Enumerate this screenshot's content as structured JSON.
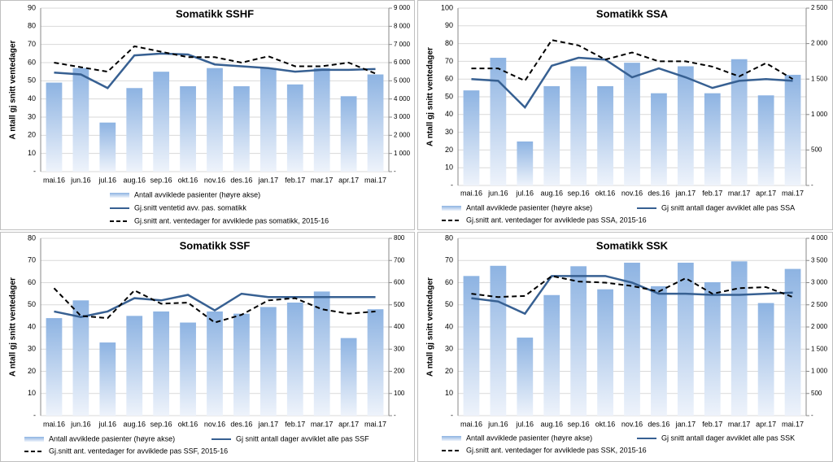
{
  "chart_data": [
    {
      "type": "combo",
      "title": "Somatikk SSHF",
      "ylabel": "A ntall gj snitt ventedager",
      "categories": [
        "mai.16",
        "jun.16",
        "jul.16",
        "aug.16",
        "sep.16",
        "okt.16",
        "nov.16",
        "des.16",
        "jan.17",
        "feb.17",
        "mar.17",
        "apr.17",
        "mai.17"
      ],
      "ylim": [
        0,
        90
      ],
      "yticks": [
        {
          "value": 0,
          "label": "-"
        },
        10,
        20,
        30,
        40,
        50,
        60,
        70,
        80,
        90
      ],
      "y2lim": [
        0,
        9000
      ],
      "y2ticks": [
        {
          "value": 0,
          "label": "-"
        },
        {
          "value": 1000,
          "label": "1 000"
        },
        {
          "value": 2000,
          "label": "2 000"
        },
        {
          "value": 3000,
          "label": "3 000"
        },
        {
          "value": 4000,
          "label": "4 000"
        },
        {
          "value": 5000,
          "label": "5 000"
        },
        {
          "value": 6000,
          "label": "6 000"
        },
        {
          "value": 7000,
          "label": "7 000"
        },
        {
          "value": 8000,
          "label": "8 000"
        },
        {
          "value": 9000,
          "label": "9 000"
        }
      ],
      "grid": true,
      "series": [
        {
          "name": "Antall avviklede pasienter (høyre akse)",
          "type": "bar",
          "axis": "y2",
          "color": "#95b3d7",
          "values": [
            4900,
            5700,
            2700,
            4600,
            5500,
            4700,
            5700,
            4700,
            5700,
            4800,
            5700,
            4150,
            5350
          ]
        },
        {
          "name": "Gj.snitt ventetid avv. pas. somatikk",
          "type": "line",
          "color": "#376092",
          "values": [
            54.5,
            53.5,
            46,
            64,
            65,
            64.5,
            59,
            58,
            57,
            55,
            56,
            56,
            56.5
          ]
        },
        {
          "name": "Gj.snitt ant. ventedager for avviklede pas somatikk, 2015-16",
          "type": "line",
          "line_style": "dashed",
          "color": "#000000",
          "values": [
            60,
            57.5,
            55,
            69,
            66,
            63,
            63,
            60,
            63.5,
            58,
            58,
            60,
            54
          ]
        }
      ]
    },
    {
      "type": "combo",
      "title": "Somatikk SSA",
      "ylabel": "A ntall gj snitt ventedager",
      "categories": [
        "mai.16",
        "jun.16",
        "jul.16",
        "aug.16",
        "sep.16",
        "okt.16",
        "nov.16",
        "des.16",
        "jan.17",
        "feb.17",
        "mar.17",
        "apr.17",
        "mai.17"
      ],
      "ylim": [
        0,
        100
      ],
      "yticks": [
        {
          "value": 0,
          "label": "-"
        },
        10,
        20,
        30,
        40,
        50,
        60,
        70,
        80,
        90,
        100
      ],
      "y2lim": [
        0,
        2500
      ],
      "y2ticks": [
        {
          "value": 0,
          "label": "-"
        },
        500,
        {
          "value": 1000,
          "label": "1 000"
        },
        {
          "value": 1500,
          "label": "1 500"
        },
        {
          "value": 2000,
          "label": "2 000"
        },
        {
          "value": 2500,
          "label": "2 500"
        }
      ],
      "grid": true,
      "series": [
        {
          "name": "Antall avviklede pasienter (høyre akse)",
          "type": "bar",
          "axis": "y2",
          "color": "#95b3d7",
          "values": [
            1340,
            1800,
            620,
            1400,
            1680,
            1400,
            1730,
            1300,
            1680,
            1300,
            1780,
            1270,
            1560
          ]
        },
        {
          "name": "Gj snitt antall dager avviklet alle pas SSA",
          "type": "line",
          "color": "#376092",
          "values": [
            60,
            59,
            44,
            67.5,
            72,
            71,
            61,
            66,
            61,
            55,
            59,
            60,
            59
          ]
        },
        {
          "name": "Gj.snitt ant. ventedager for avviklede pas SSA, 2015-16",
          "type": "line",
          "line_style": "dashed",
          "color": "#000000",
          "values": [
            66,
            66,
            59,
            82,
            79,
            71,
            75,
            70,
            70,
            67,
            61.5,
            69,
            60
          ]
        }
      ]
    },
    {
      "type": "combo",
      "title": "Somatikk SSF",
      "ylabel": "A ntall gj snitt ventedager",
      "categories": [
        "mai.16",
        "jun.16",
        "jul.16",
        "aug.16",
        "sep.16",
        "okt.16",
        "nov.16",
        "des.16",
        "jan.17",
        "feb.17",
        "mar.17",
        "apr.17",
        "mai.17"
      ],
      "ylim": [
        0,
        80
      ],
      "yticks": [
        {
          "value": 0,
          "label": "-"
        },
        10,
        20,
        30,
        40,
        50,
        60,
        70,
        80
      ],
      "y2lim": [
        0,
        800
      ],
      "y2ticks": [
        {
          "value": 0,
          "label": "-"
        },
        100,
        200,
        300,
        400,
        500,
        600,
        700,
        800
      ],
      "grid": true,
      "series": [
        {
          "name": "Antall avviklede pasienter (høyre akse)",
          "type": "bar",
          "axis": "y2",
          "color": "#95b3d7",
          "values": [
            440,
            520,
            330,
            450,
            470,
            420,
            470,
            460,
            490,
            510,
            560,
            350,
            480
          ]
        },
        {
          "name": "Gj snitt antall dager avviklet alle pas SSF",
          "type": "line",
          "color": "#376092",
          "values": [
            47,
            44.5,
            47,
            53,
            52,
            54.5,
            47.5,
            55,
            53.5,
            53.5,
            53.5,
            53.5,
            53.5
          ]
        },
        {
          "name": "Gj.snitt ant. ventedager for avviklede pas SSF, 2015-16",
          "type": "line",
          "line_style": "dashed",
          "color": "#000000",
          "values": [
            57.5,
            45,
            44,
            56.5,
            50.5,
            51,
            42,
            45.5,
            52,
            53,
            48,
            46,
            47
          ]
        }
      ]
    },
    {
      "type": "combo",
      "title": "Somatikk SSK",
      "ylabel": "A ntall gj snitt ventedager",
      "categories": [
        "mai.16",
        "jun.16",
        "jul.16",
        "aug.16",
        "sep.16",
        "okt.16",
        "nov.16",
        "des.16",
        "jan.17",
        "feb.17",
        "mar.17",
        "apr.17",
        "mai.17"
      ],
      "ylim": [
        0,
        80
      ],
      "yticks": [
        {
          "value": 0,
          "label": "-"
        },
        10,
        20,
        30,
        40,
        50,
        60,
        70,
        80
      ],
      "y2lim": [
        0,
        4000
      ],
      "y2ticks": [
        {
          "value": 0,
          "label": "-"
        },
        500,
        {
          "value": 1000,
          "label": "1 000"
        },
        {
          "value": 1500,
          "label": "1 500"
        },
        {
          "value": 2000,
          "label": "2 000"
        },
        {
          "value": 2500,
          "label": "2 500"
        },
        {
          "value": 3000,
          "label": "3 000"
        },
        {
          "value": 3500,
          "label": "3 500"
        },
        {
          "value": 4000,
          "label": "4 000"
        }
      ],
      "grid": true,
      "series": [
        {
          "name": "Antall avviklede pasienter (høyre akse)",
          "type": "bar",
          "axis": "y2",
          "color": "#95b3d7",
          "values": [
            3150,
            3380,
            1760,
            2720,
            3370,
            2850,
            3450,
            2920,
            3450,
            3010,
            3480,
            2540,
            3310
          ]
        },
        {
          "name": "Gj snitt antall dager avviklet alle pas SSK",
          "type": "line",
          "color": "#376092",
          "values": [
            53,
            51.5,
            46,
            63,
            63,
            63,
            60,
            55,
            55,
            54.5,
            54.5,
            55,
            55.5
          ]
        },
        {
          "name": "Gj.snitt ant. ventedager for avviklede pas SSK, 2015-16",
          "type": "line",
          "line_style": "dashed",
          "color": "#000000",
          "values": [
            55,
            53.5,
            54,
            63,
            60.5,
            60,
            58.5,
            56,
            62,
            55,
            57.5,
            58,
            53.5
          ]
        }
      ]
    }
  ]
}
